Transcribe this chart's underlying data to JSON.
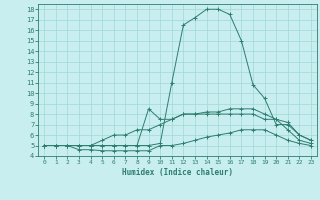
{
  "title": "",
  "xlabel": "Humidex (Indice chaleur)",
  "bg_color": "#c8eef0",
  "line_color": "#2e7d6e",
  "grid_color": "#a0d8d8",
  "xlim": [
    -0.5,
    23.5
  ],
  "ylim": [
    4,
    18.5
  ],
  "yticks": [
    4,
    5,
    6,
    7,
    8,
    9,
    10,
    11,
    12,
    13,
    14,
    15,
    16,
    17,
    18
  ],
  "xticks": [
    0,
    1,
    2,
    3,
    4,
    5,
    6,
    7,
    8,
    9,
    10,
    11,
    12,
    13,
    14,
    15,
    16,
    17,
    18,
    19,
    20,
    21,
    22,
    23
  ],
  "curves": [
    {
      "x": [
        0,
        1,
        2,
        3,
        4,
        5,
        6,
        7,
        8,
        9,
        10,
        11,
        12,
        13,
        14,
        15,
        16,
        17,
        18,
        19,
        20,
        21,
        22,
        23
      ],
      "y": [
        5.0,
        5.0,
        5.0,
        5.0,
        5.0,
        5.0,
        5.0,
        5.0,
        5.0,
        5.0,
        5.2,
        11.0,
        16.5,
        17.2,
        18.0,
        18.0,
        17.5,
        15.0,
        10.8,
        9.5,
        7.0,
        7.0,
        6.0,
        5.5
      ]
    },
    {
      "x": [
        0,
        1,
        2,
        3,
        4,
        5,
        6,
        7,
        8,
        9,
        10,
        11,
        12,
        13,
        14,
        15,
        16,
        17,
        18,
        19,
        20,
        21,
        22,
        23
      ],
      "y": [
        5.0,
        5.0,
        5.0,
        5.0,
        5.0,
        5.0,
        5.0,
        5.0,
        5.0,
        8.5,
        7.5,
        7.5,
        8.0,
        8.0,
        8.2,
        8.2,
        8.5,
        8.5,
        8.5,
        8.0,
        7.5,
        7.2,
        6.0,
        5.5
      ]
    },
    {
      "x": [
        0,
        1,
        2,
        3,
        4,
        5,
        6,
        7,
        8,
        9,
        10,
        11,
        12,
        13,
        14,
        15,
        16,
        17,
        18,
        19,
        20,
        21,
        22,
        23
      ],
      "y": [
        5.0,
        5.0,
        5.0,
        5.0,
        5.0,
        5.5,
        6.0,
        6.0,
        6.5,
        6.5,
        7.0,
        7.5,
        8.0,
        8.0,
        8.0,
        8.0,
        8.0,
        8.0,
        8.0,
        7.5,
        7.5,
        6.5,
        5.5,
        5.2
      ]
    },
    {
      "x": [
        0,
        1,
        2,
        3,
        4,
        5,
        6,
        7,
        8,
        9,
        10,
        11,
        12,
        13,
        14,
        15,
        16,
        17,
        18,
        19,
        20,
        21,
        22,
        23
      ],
      "y": [
        5.0,
        5.0,
        5.0,
        4.6,
        4.6,
        4.5,
        4.5,
        4.5,
        4.5,
        4.5,
        5.0,
        5.0,
        5.2,
        5.5,
        5.8,
        6.0,
        6.2,
        6.5,
        6.5,
        6.5,
        6.0,
        5.5,
        5.2,
        5.0
      ]
    }
  ]
}
